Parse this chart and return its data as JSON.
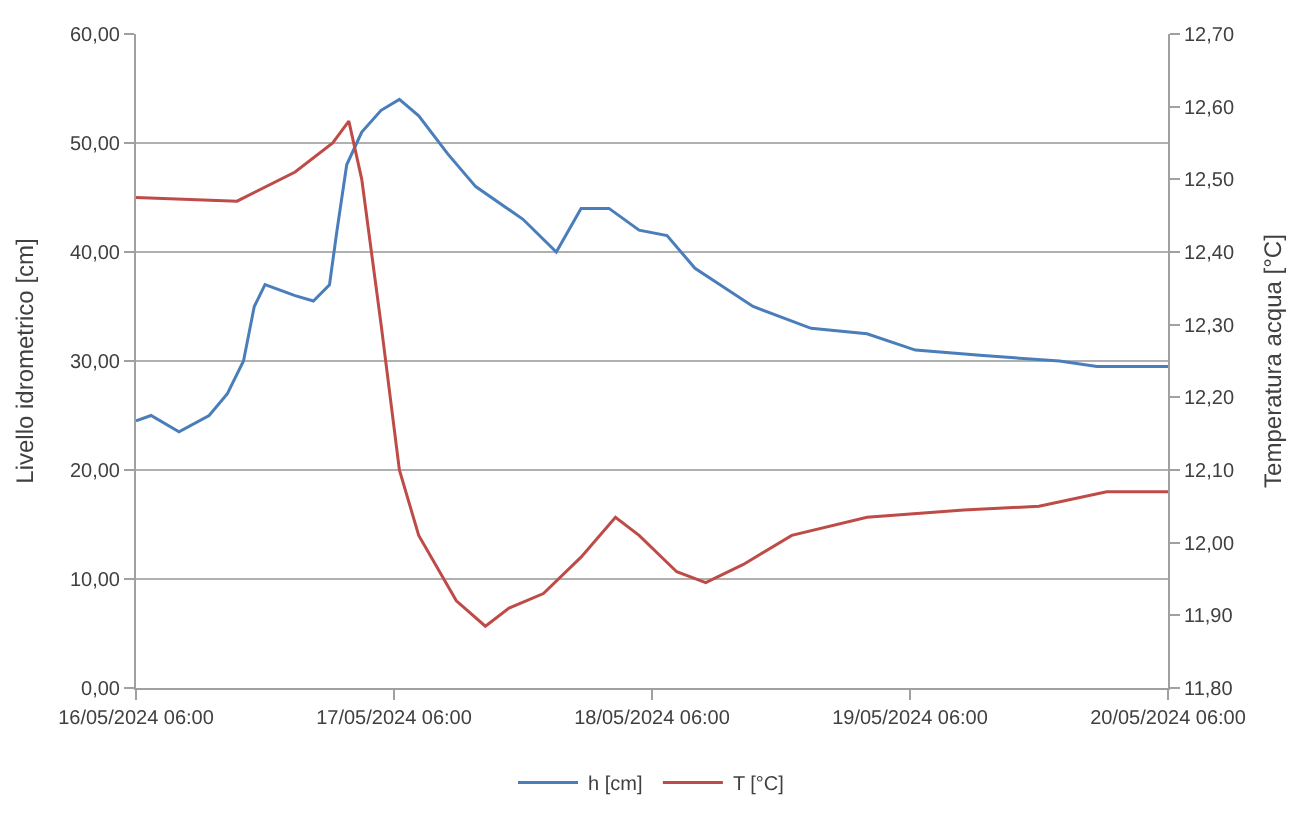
{
  "chart_data": {
    "type": "line",
    "xlabel": null,
    "ylabel": "Livello idrometrico [cm]",
    "y2label": "Temperatura acqua [°C]",
    "xlim": [
      "2024-05-16T06:00",
      "2024-05-20T06:00"
    ],
    "xticks": [
      {
        "value": "2024-05-16T06:00",
        "label": "16/05/2024 06:00"
      },
      {
        "value": "2024-05-17T06:00",
        "label": "17/05/2024 06:00"
      },
      {
        "value": "2024-05-18T06:00",
        "label": "18/05/2024 06:00"
      },
      {
        "value": "2024-05-19T06:00",
        "label": "19/05/2024 06:00"
      },
      {
        "value": "2024-05-20T06:00",
        "label": "20/05/2024 06:00"
      }
    ],
    "ylim": [
      0,
      60
    ],
    "yticks": [
      {
        "value": 0,
        "label": "0,00"
      },
      {
        "value": 10,
        "label": "10,00"
      },
      {
        "value": 20,
        "label": "20,00"
      },
      {
        "value": 30,
        "label": "30,00"
      },
      {
        "value": 40,
        "label": "40,00"
      },
      {
        "value": 50,
        "label": "50,00"
      },
      {
        "value": 60,
        "label": "60,00"
      }
    ],
    "y2lim": [
      11.8,
      12.7
    ],
    "y2ticks": [
      {
        "value": 11.8,
        "label": "11,80"
      },
      {
        "value": 11.9,
        "label": "11,90"
      },
      {
        "value": 12.0,
        "label": "12,00"
      },
      {
        "value": 12.1,
        "label": "12,10"
      },
      {
        "value": 12.2,
        "label": "12,20"
      },
      {
        "value": 12.3,
        "label": "12,30"
      },
      {
        "value": 12.4,
        "label": "12,40"
      },
      {
        "value": 12.5,
        "label": "12,50"
      },
      {
        "value": 12.6,
        "label": "12,60"
      },
      {
        "value": 12.7,
        "label": "12,70"
      }
    ],
    "grid": "y",
    "legend": "bottom",
    "marker": "none",
    "line_style": "solid",
    "series": [
      {
        "name": "h [cm]",
        "color": "#4a7ebb",
        "x": [
          "2024-05-16T06:00",
          "2024-05-16T07:24",
          "2024-05-16T10:00",
          "2024-05-16T12:48",
          "2024-05-16T14:30",
          "2024-05-16T16:00",
          "2024-05-16T17:00",
          "2024-05-16T18:00",
          "2024-05-16T20:48",
          "2024-05-16T22:30",
          "2024-05-17T00:00",
          "2024-05-17T00:42",
          "2024-05-17T01:36",
          "2024-05-17T03:00",
          "2024-05-17T04:48",
          "2024-05-17T06:30",
          "2024-05-17T08:18",
          "2024-05-17T11:00",
          "2024-05-17T13:36",
          "2024-05-17T18:00",
          "2024-05-17T21:06",
          "2024-05-17T23:24",
          "2024-05-18T02:00",
          "2024-05-18T04:48",
          "2024-05-18T07:24",
          "2024-05-18T10:00",
          "2024-05-18T15:24",
          "2024-05-18T20:48",
          "2024-05-19T02:00",
          "2024-05-19T06:30",
          "2024-05-19T12:48",
          "2024-05-19T19:54",
          "2024-05-19T23:24",
          "2024-05-20T06:00"
        ],
        "values": [
          24.5,
          25,
          23.5,
          25,
          27,
          30,
          35,
          37,
          36,
          35.5,
          37,
          42,
          48,
          51,
          53,
          54,
          52.5,
          49,
          46,
          43,
          40,
          44,
          44,
          42,
          41.5,
          38.5,
          35,
          33,
          32.5,
          31,
          30.5,
          30,
          29.5,
          29.5
        ]
      },
      {
        "name": "T [°C]",
        "color": "#be4b48",
        "axis": "y2",
        "x": [
          "2024-05-16T06:00",
          "2024-05-16T15:24",
          "2024-05-16T20:48",
          "2024-05-17T00:18",
          "2024-05-17T01:48",
          "2024-05-17T03:00",
          "2024-05-17T04:48",
          "2024-05-17T06:30",
          "2024-05-17T08:18",
          "2024-05-17T11:48",
          "2024-05-17T14:30",
          "2024-05-17T16:42",
          "2024-05-17T19:54",
          "2024-05-17T23:24",
          "2024-05-18T02:36",
          "2024-05-18T04:48",
          "2024-05-18T08:18",
          "2024-05-18T11:00",
          "2024-05-18T14:30",
          "2024-05-18T19:00",
          "2024-05-19T02:00",
          "2024-05-19T11:00",
          "2024-05-19T18:00",
          "2024-05-20T00:18",
          "2024-05-20T06:00"
        ],
        "values": [
          12.475,
          12.47,
          12.51,
          12.55,
          12.58,
          12.5,
          12.3,
          12.1,
          12.01,
          11.92,
          11.885,
          11.91,
          11.93,
          11.98,
          12.035,
          12.01,
          11.96,
          11.945,
          11.97,
          12.01,
          12.035,
          12.045,
          12.05,
          12.07,
          12.07
        ]
      }
    ]
  }
}
